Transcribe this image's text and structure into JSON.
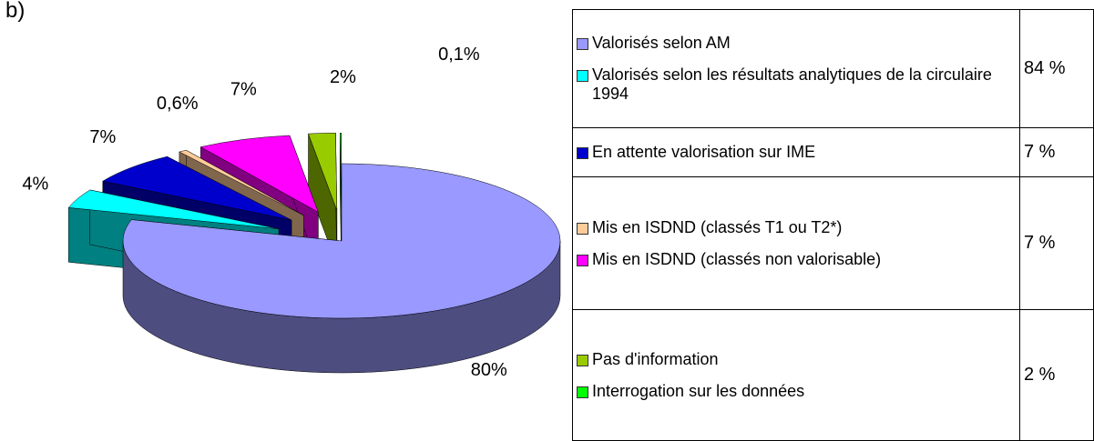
{
  "heading": "b)",
  "chart_data": {
    "type": "pie",
    "legend_table": [
      {
        "names": [
          "Valorisés selon AM",
          "Valorisés selon les résultats analytiques de la circulaire 1994"
        ],
        "total": "84 %"
      },
      {
        "names": [
          "En attente valorisation sur IME"
        ],
        "total": "7 %"
      },
      {
        "names": [
          "Mis en ISDND (classés T1 ou T2*)",
          "Mis en ISDND (classés non valorisable)"
        ],
        "total": "7 %"
      },
      {
        "names": [
          "Pas d'information",
          "Interrogation sur les données"
        ],
        "total": "2 %"
      }
    ],
    "values": [
      80,
      4,
      7,
      0.6,
      7,
      2,
      0.1
    ],
    "value_labels": [
      "80%",
      "4%",
      "7%",
      "0,6%",
      "7%",
      "2%",
      "0,1%"
    ],
    "colors": [
      "#9999ff",
      "#00ffff",
      "#0000cc",
      "#ffcc99",
      "#ff00ff",
      "#99cc00",
      "#00ff00"
    ]
  }
}
